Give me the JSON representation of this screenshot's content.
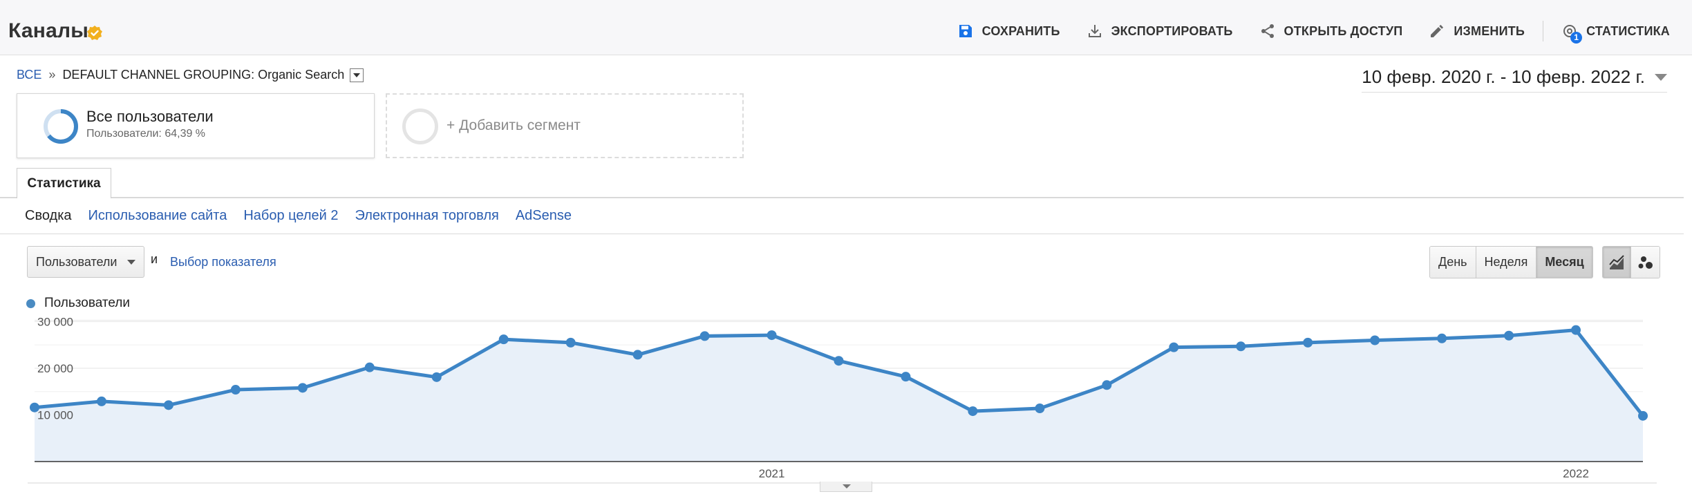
{
  "header": {
    "title": "Каналы",
    "actions": {
      "save": "СОХРАНИТЬ",
      "export": "ЭКСПОРТИРОВАТЬ",
      "share": "ОТКРЫТЬ ДОСТУП",
      "edit": "ИЗМЕНИТЬ",
      "insights": "СТАТИСТИКА",
      "insights_badge": "1"
    }
  },
  "breadcrumb": {
    "all": "ВСЕ",
    "sep": "»",
    "current": "DEFAULT CHANNEL GROUPING: Organic Search"
  },
  "date_range": "10 февр. 2020 г. - 10 февр. 2022 г.",
  "segments": {
    "active": {
      "title": "Все пользователи",
      "subtitle": "Пользователи: 64,39 %",
      "share": 0.6439
    },
    "add_label": "+ Добавить сегмент"
  },
  "tab": "Статистика",
  "subtabs": [
    "Сводка",
    "Использование сайта",
    "Набор целей 2",
    "Электронная торговля",
    "AdSense"
  ],
  "controls": {
    "metric": "Пользователи",
    "and": "и",
    "choose_metric": "Выбор показателя",
    "periods": [
      "День",
      "Неделя",
      "Месяц"
    ],
    "selected_period": "Месяц"
  },
  "colors": {
    "series": "#3d85c6",
    "fill": "#e8f0f9",
    "link": "#2a5db0",
    "accent": "#1a73e8"
  },
  "chart_data": {
    "type": "area",
    "series": [
      {
        "name": "Пользователи",
        "values": [
          11600,
          12900,
          12100,
          15400,
          15800,
          20200,
          18100,
          26200,
          25500,
          22900,
          26900,
          27100,
          21600,
          18200,
          10800,
          11400,
          16400,
          24500,
          24700,
          25500,
          26000,
          26400,
          27000,
          28200,
          9800
        ]
      }
    ],
    "x": [
      "2020-02",
      "2020-03",
      "2020-04",
      "2020-05",
      "2020-06",
      "2020-07",
      "2020-08",
      "2020-09",
      "2020-10",
      "2020-11",
      "2020-12",
      "2021-01",
      "2021-02",
      "2021-03",
      "2021-04",
      "2021-05",
      "2021-06",
      "2021-07",
      "2021-08",
      "2021-09",
      "2021-10",
      "2021-11",
      "2021-12",
      "2022-01",
      "2022-02"
    ],
    "x_tick_labels": [
      {
        "label": "2021",
        "index": 11
      },
      {
        "label": "2022",
        "index": 23
      }
    ],
    "y_ticks": [
      "10 000",
      "20 000",
      "30 000"
    ],
    "ylim": [
      0,
      30000
    ],
    "grid": true,
    "legend": "top-left"
  }
}
